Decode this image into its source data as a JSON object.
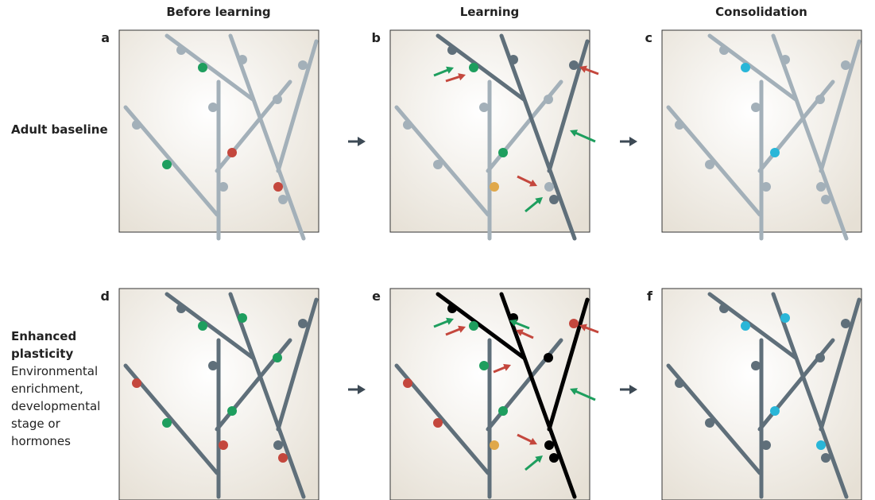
{
  "columns": [
    "Before learning",
    "Learning",
    "Consolidation"
  ],
  "panels": [
    "a",
    "b",
    "c",
    "d",
    "e",
    "f"
  ],
  "rows": [
    {
      "title": "Adult baseline"
    },
    {
      "title": "Enhanced plasticity",
      "subtitle": "Environmental enrichment, developmental stage or hormones"
    }
  ]
}
